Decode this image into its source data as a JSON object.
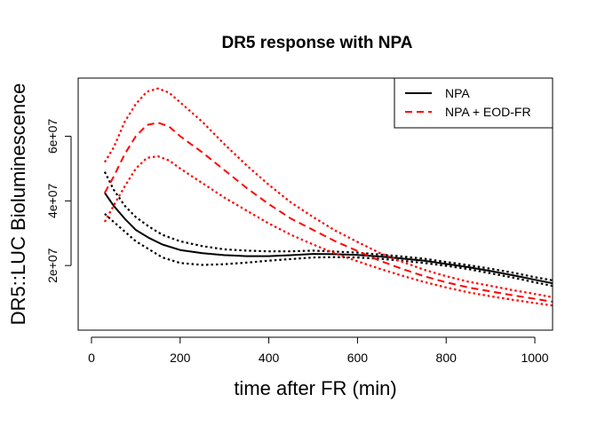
{
  "chart_data": {
    "type": "line",
    "title": "DR5 response with NPA",
    "xlabel": "time after FR (min)",
    "ylabel": "DR5::LUC Bioluminescence",
    "xlim": [
      -30,
      1040
    ],
    "ylim": [
      0,
      78000000
    ],
    "x_ticks": [
      0,
      200,
      400,
      600,
      800,
      1000
    ],
    "x_tick_labels": [
      "0",
      "200",
      "400",
      "600",
      "800",
      "1000"
    ],
    "y_ticks": [
      20000000,
      40000000,
      60000000
    ],
    "y_tick_labels": [
      "2e+07",
      "4e+07",
      "6e+07"
    ],
    "legend_position": "top-right",
    "legend": [
      {
        "label": "NPA",
        "color": "#000000",
        "style": "solid"
      },
      {
        "label": "NPA + EOD-FR",
        "color": "#ff0000",
        "style": "dashed"
      }
    ],
    "series": [
      {
        "name": "NPA",
        "color": "#000000",
        "style": "solid",
        "x": [
          30,
          50,
          75,
          100,
          130,
          160,
          200,
          250,
          300,
          350,
          400,
          450,
          500,
          550,
          600,
          650,
          700,
          750,
          800,
          850,
          900,
          950,
          1000,
          1040
        ],
        "y": [
          42500000,
          38500000,
          34500000,
          31000000,
          28500000,
          26500000,
          24800000,
          23800000,
          23200000,
          22900000,
          22900000,
          23200000,
          23600000,
          23500000,
          23300000,
          22800000,
          22200000,
          21500000,
          20500000,
          19500000,
          18300000,
          17000000,
          15600000,
          14500000
        ]
      },
      {
        "name": "NPA upper band",
        "color": "#000000",
        "style": "dotted",
        "x": [
          30,
          50,
          75,
          100,
          130,
          160,
          200,
          250,
          300,
          350,
          400,
          450,
          500,
          550,
          600,
          650,
          700,
          750,
          800,
          850,
          900,
          950,
          1000,
          1040
        ],
        "y": [
          49000000,
          43500000,
          38500000,
          35000000,
          32000000,
          29500000,
          27500000,
          26000000,
          25000000,
          24600000,
          24400000,
          24400000,
          24600000,
          24300000,
          24000000,
          23400000,
          22800000,
          22100000,
          21100000,
          20100000,
          19000000,
          17800000,
          16400000,
          15400000
        ]
      },
      {
        "name": "NPA lower band",
        "color": "#000000",
        "style": "dotted",
        "x": [
          30,
          50,
          75,
          100,
          130,
          160,
          200,
          250,
          300,
          350,
          400,
          450,
          500,
          550,
          600,
          650,
          700,
          750,
          800,
          850,
          900,
          950,
          1000,
          1040
        ],
        "y": [
          36000000,
          33500000,
          30500000,
          27500000,
          25000000,
          22500000,
          20800000,
          20200000,
          20400000,
          20900000,
          21500000,
          22000000,
          22500000,
          22600000,
          22500000,
          22100000,
          21500000,
          20800000,
          19900000,
          18900000,
          17600000,
          16300000,
          14800000,
          13700000
        ]
      },
      {
        "name": "NPA + EOD-FR",
        "color": "#ff0000",
        "style": "dashed",
        "x": [
          30,
          50,
          75,
          100,
          125,
          150,
          175,
          200,
          250,
          300,
          350,
          400,
          450,
          500,
          550,
          600,
          650,
          700,
          750,
          800,
          850,
          900,
          950,
          1000,
          1040
        ],
        "y": [
          42500000,
          47500000,
          54500000,
          60000000,
          63500000,
          64200000,
          63000000,
          60000000,
          55000000,
          49500000,
          44000000,
          39000000,
          34500000,
          31000000,
          27500000,
          24500000,
          21500000,
          19000000,
          16700000,
          14800000,
          13200000,
          12000000,
          10800000,
          9700000,
          8800000
        ]
      },
      {
        "name": "NPA + EOD-FR upper band",
        "color": "#ff0000",
        "style": "dotted",
        "x": [
          30,
          50,
          75,
          100,
          125,
          150,
          175,
          200,
          250,
          300,
          350,
          400,
          450,
          500,
          550,
          600,
          650,
          700,
          750,
          800,
          850,
          900,
          950,
          1000,
          1040
        ],
        "y": [
          52000000,
          56500000,
          64500000,
          70000000,
          73800000,
          74800000,
          73500000,
          70500000,
          64500000,
          57500000,
          51000000,
          45000000,
          39500000,
          35000000,
          30800000,
          27300000,
          23900000,
          21200000,
          18700000,
          16700000,
          15000000,
          13700000,
          12400000,
          11200000,
          10200000
        ]
      },
      {
        "name": "NPA + EOD-FR lower band",
        "color": "#ff0000",
        "style": "dotted",
        "x": [
          30,
          50,
          75,
          100,
          125,
          150,
          175,
          200,
          250,
          300,
          350,
          400,
          450,
          500,
          550,
          600,
          650,
          700,
          750,
          800,
          850,
          900,
          950,
          1000,
          1040
        ],
        "y": [
          33500000,
          38500000,
          44500000,
          50000000,
          53300000,
          53800000,
          52500000,
          50000000,
          45500000,
          41000000,
          37000000,
          33000000,
          29500000,
          26500000,
          23700000,
          21300000,
          19000000,
          16900000,
          14900000,
          13200000,
          11700000,
          10500000,
          9400000,
          8400000,
          7600000
        ]
      }
    ]
  }
}
